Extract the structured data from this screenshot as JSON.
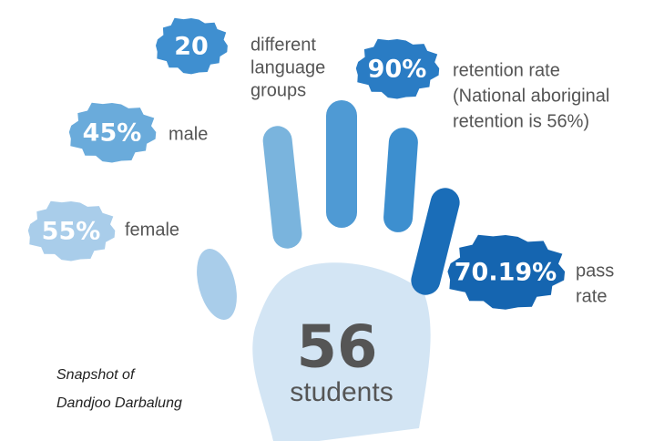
{
  "stats": [
    {
      "value": "20",
      "lines": [
        "different",
        "language",
        "groups"
      ]
    },
    {
      "value": "90%",
      "lines": [
        "retention rate",
        "(National aboriginal",
        "retention is 56%)"
      ]
    },
    {
      "value": "45%",
      "lines": [
        "male"
      ]
    },
    {
      "value": "55%",
      "lines": [
        "female"
      ]
    },
    {
      "value": "70.19%",
      "lines": [
        "pass",
        "rate"
      ]
    }
  ],
  "center": {
    "number": "56",
    "label": "students"
  },
  "caption": [
    "Snapshot of",
    "Dandjoo Darbalung"
  ]
}
